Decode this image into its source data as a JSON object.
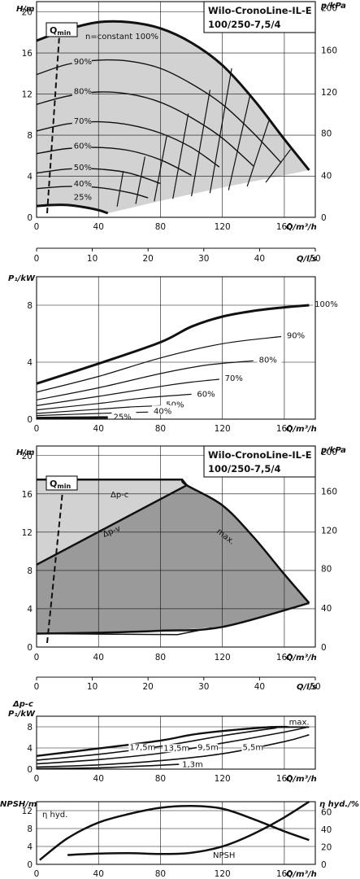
{
  "pump_title": {
    "line1": "Wilo-CronoLine-IL-E",
    "line2": "100/250-7,5/4"
  },
  "labels": {
    "h_axis": "H/m",
    "p_kpa_axis": "p/kPa",
    "q_m3h": "Q/m³/h",
    "q_ls": "Q/l/s",
    "p1_axis": "P₁/kW",
    "dpc_p1_axis_line1": "Δp-c",
    "dpc_p1_axis_line2": "P₁/kW",
    "npsh_axis": "NPSH/m",
    "eta_axis": "η hyd./%",
    "qmin": "Q",
    "qmin_sub": "min",
    "n_constant": "n=constant 100%",
    "dp_c": "Δp-c",
    "dp_v": "Δp-v",
    "max": "max.",
    "max2": "max.",
    "eta_hyd": "η hyd.",
    "npsh": "NPSH"
  },
  "chart_data": [
    {
      "id": "H-Q speed curves",
      "type": "line",
      "x_axis_top": {
        "label": "Q/m³/h",
        "ticks": [
          "0",
          "40",
          "80",
          "120",
          "160"
        ],
        "range": [
          0,
          180
        ]
      },
      "x_axis_bottom": {
        "label": "Q/l/s",
        "ticks": [
          "0",
          "10",
          "20",
          "30",
          "40",
          "50"
        ]
      },
      "y_left": {
        "label": "H/m",
        "ticks": [
          "0",
          "4",
          "8",
          "12",
          "16",
          "20"
        ],
        "range": [
          0,
          21
        ]
      },
      "y_right": {
        "label": "p/kPa",
        "ticks": [
          "0",
          "40",
          "80",
          "120",
          "160",
          "200"
        ]
      },
      "series_labels": [
        "n=constant 100%",
        "90%",
        "80%",
        "70%",
        "60%",
        "50%",
        "40%",
        "25%"
      ],
      "series": [
        {
          "name": "100%",
          "points": [
            [
              0,
              17.2
            ],
            [
              20,
              18.3
            ],
            [
              40,
              19.0
            ],
            [
              60,
              19.0
            ],
            [
              80,
              18.4
            ],
            [
              100,
              17.0
            ],
            [
              120,
              14.8
            ],
            [
              140,
              11.5
            ],
            [
              160,
              7.6
            ],
            [
              176,
              4.6
            ]
          ]
        },
        {
          "name": "90%",
          "points": [
            [
              0,
              13.9
            ],
            [
              20,
              14.9
            ],
            [
              40,
              15.3
            ],
            [
              60,
              15.2
            ],
            [
              80,
              14.5
            ],
            [
              100,
              13.0
            ],
            [
              120,
              11.0
            ],
            [
              140,
              8.2
            ],
            [
              158,
              5.3
            ]
          ]
        },
        {
          "name": "80%",
          "points": [
            [
              0,
              11.0
            ],
            [
              20,
              11.8
            ],
            [
              40,
              12.2
            ],
            [
              60,
              12.0
            ],
            [
              80,
              11.2
            ],
            [
              100,
              9.7
            ],
            [
              120,
              7.7
            ],
            [
              140,
              5.0
            ]
          ]
        },
        {
          "name": "70%",
          "points": [
            [
              0,
              8.4
            ],
            [
              20,
              9.1
            ],
            [
              40,
              9.3
            ],
            [
              60,
              9.0
            ],
            [
              80,
              8.2
            ],
            [
              100,
              6.8
            ],
            [
              118,
              4.9
            ]
          ]
        },
        {
          "name": "60%",
          "points": [
            [
              0,
              6.2
            ],
            [
              20,
              6.7
            ],
            [
              40,
              6.8
            ],
            [
              60,
              6.5
            ],
            [
              80,
              5.6
            ],
            [
              100,
              4.1
            ]
          ]
        },
        {
          "name": "50%",
          "points": [
            [
              0,
              4.3
            ],
            [
              20,
              4.7
            ],
            [
              40,
              4.7
            ],
            [
              60,
              4.3
            ],
            [
              80,
              3.3
            ]
          ]
        },
        {
          "name": "40%",
          "points": [
            [
              0,
              2.8
            ],
            [
              20,
              3.0
            ],
            [
              40,
              2.9
            ],
            [
              60,
              2.4
            ],
            [
              72,
              1.9
            ]
          ]
        },
        {
          "name": "25%",
          "points": [
            [
              0,
              1.1
            ],
            [
              10,
              1.2
            ],
            [
              20,
              1.2
            ],
            [
              30,
              1.0
            ],
            [
              40,
              0.7
            ],
            [
              46,
              0.4
            ]
          ]
        }
      ]
    },
    {
      "id": "P1-Q speed curves",
      "type": "line",
      "x_axis": {
        "label": "Q/m³/h",
        "ticks": [
          "0",
          "40",
          "80",
          "120",
          "160"
        ],
        "range": [
          0,
          180
        ]
      },
      "y_axis": {
        "label": "P₁/kW",
        "ticks": [
          "0",
          "4",
          "8"
        ],
        "range": [
          0,
          10
        ]
      },
      "series_labels": [
        "100%",
        "90%",
        "80%",
        "70%",
        "60%",
        "50%",
        "40%",
        "25%"
      ],
      "series": [
        {
          "name": "100%",
          "points": [
            [
              0,
              2.5
            ],
            [
              40,
              3.9
            ],
            [
              80,
              5.4
            ],
            [
              100,
              6.5
            ],
            [
              120,
              7.2
            ],
            [
              140,
              7.6
            ],
            [
              160,
              7.85
            ],
            [
              176,
              8.0
            ]
          ]
        },
        {
          "name": "90%",
          "points": [
            [
              0,
              1.9
            ],
            [
              40,
              3.0
            ],
            [
              80,
              4.3
            ],
            [
              120,
              5.3
            ],
            [
              158,
              5.8
            ]
          ]
        },
        {
          "name": "80%",
          "points": [
            [
              0,
              1.35
            ],
            [
              40,
              2.2
            ],
            [
              80,
              3.2
            ],
            [
              110,
              3.8
            ],
            [
              140,
              4.1
            ]
          ]
        },
        {
          "name": "70%",
          "points": [
            [
              0,
              0.95
            ],
            [
              40,
              1.6
            ],
            [
              80,
              2.3
            ],
            [
              100,
              2.6
            ],
            [
              118,
              2.8
            ]
          ]
        },
        {
          "name": "60%",
          "points": [
            [
              0,
              0.65
            ],
            [
              40,
              1.1
            ],
            [
              70,
              1.5
            ],
            [
              100,
              1.75
            ]
          ]
        },
        {
          "name": "50%",
          "points": [
            [
              0,
              0.4
            ],
            [
              40,
              0.7
            ],
            [
              60,
              0.85
            ],
            [
              80,
              0.95
            ]
          ]
        },
        {
          "name": "40%",
          "points": [
            [
              0,
              0.25
            ],
            [
              40,
              0.4
            ],
            [
              72,
              0.5
            ]
          ]
        },
        {
          "name": "25%",
          "points": [
            [
              0,
              0.08
            ],
            [
              20,
              0.1
            ],
            [
              46,
              0.12
            ]
          ]
        }
      ]
    },
    {
      "id": "Delta-p control range",
      "type": "area",
      "x_axis_top": {
        "label": "Q/m³/h",
        "ticks": [
          "0",
          "40",
          "80",
          "120",
          "160"
        ],
        "range": [
          0,
          180
        ]
      },
      "x_axis_bottom": {
        "label": "Q/l/s",
        "ticks": [
          "0",
          "10",
          "20",
          "30",
          "40",
          "50"
        ]
      },
      "y_left": {
        "label": "H/m",
        "ticks": [
          "0",
          "4",
          "8",
          "12",
          "16",
          "20"
        ],
        "range": [
          0,
          21
        ]
      },
      "y_right": {
        "label": "p/kPa",
        "ticks": [
          "0",
          "40",
          "80",
          "120",
          "160",
          "200"
        ]
      },
      "series_labels": [
        "Δp-c",
        "Δp-v",
        "max."
      ],
      "series": [
        {
          "name": "Δp-c",
          "points": [
            [
              0,
              17.5
            ],
            [
              94,
              17.5
            ]
          ]
        },
        {
          "name": "Δp-v",
          "points": [
            [
              0,
              8.6
            ],
            [
              97,
              16.9
            ]
          ]
        },
        {
          "name": "max.",
          "points": [
            [
              94,
              17.5
            ],
            [
              97,
              16.9
            ],
            [
              120,
              14.8
            ],
            [
              140,
              11.5
            ],
            [
              160,
              7.6
            ],
            [
              176,
              4.6
            ]
          ]
        },
        {
          "name": "min",
          "points": [
            [
              0,
              1.4
            ],
            [
              40,
              1.5
            ],
            [
              80,
              1.7
            ],
            [
              120,
              2.1
            ],
            [
              176,
              4.6
            ]
          ]
        }
      ]
    },
    {
      "id": "Delta-p-c P1",
      "type": "line",
      "x_axis": {
        "label": "Q/m³/h",
        "ticks": [
          "0",
          "40",
          "80",
          "120",
          "160"
        ],
        "range": [
          0,
          180
        ]
      },
      "y_axis": {
        "label": "Δp-c P₁/kW",
        "ticks": [
          "0",
          "4",
          "8"
        ],
        "range": [
          0,
          10
        ]
      },
      "series_labels": [
        "max.",
        "17,5m",
        "13,5m",
        "9,5m",
        "5,5m",
        "1,3m"
      ],
      "series": [
        {
          "name": "max.",
          "points": [
            [
              0,
              2.5
            ],
            [
              40,
              3.9
            ],
            [
              80,
              5.4
            ],
            [
              100,
              6.5
            ],
            [
              120,
              7.2
            ],
            [
              150,
              7.9
            ],
            [
              176,
              8.0
            ]
          ]
        },
        {
          "name": "17,5m",
          "points": [
            [
              0,
              2.5
            ],
            [
              40,
              3.9
            ],
            [
              80,
              5.4
            ],
            [
              100,
              6.5
            ],
            [
              120,
              7.2
            ],
            [
              150,
              8.0
            ],
            [
              170,
              8.0
            ]
          ]
        },
        {
          "name": "13,5m",
          "points": [
            [
              0,
              1.7
            ],
            [
              40,
              2.8
            ],
            [
              80,
              4.3
            ],
            [
              120,
              6.3
            ],
            [
              155,
              7.8
            ]
          ]
        },
        {
          "name": "9,5m",
          "points": [
            [
              0,
              1.0
            ],
            [
              40,
              1.8
            ],
            [
              80,
              3.0
            ],
            [
              120,
              4.9
            ],
            [
              160,
              7.0
            ],
            [
              176,
              8.0
            ]
          ]
        },
        {
          "name": "5,5m",
          "points": [
            [
              0,
              0.4
            ],
            [
              40,
              0.8
            ],
            [
              80,
              1.6
            ],
            [
              120,
              2.9
            ],
            [
              160,
              5.2
            ],
            [
              176,
              6.5
            ]
          ]
        },
        {
          "name": "1,3m",
          "points": [
            [
              0,
              0.1
            ],
            [
              40,
              0.25
            ],
            [
              70,
              0.6
            ],
            [
              92,
              0.9
            ]
          ]
        }
      ]
    },
    {
      "id": "NPSH and efficiency",
      "type": "line",
      "x_axis": {
        "label": "Q/m³/h",
        "ticks": [
          "0",
          "40",
          "80",
          "120",
          "160"
        ],
        "range": [
          0,
          180
        ]
      },
      "y_left": {
        "label": "NPSH/m",
        "ticks": [
          "0",
          "4",
          "8",
          "12"
        ],
        "range": [
          0,
          14
        ]
      },
      "y_right": {
        "label": "η hyd./%",
        "ticks": [
          "0",
          "20",
          "40",
          "60"
        ],
        "range": [
          0,
          72
        ]
      },
      "series_labels": [
        "η hyd.",
        "NPSH"
      ],
      "series": [
        {
          "name": "η hyd.",
          "axis": "right",
          "points": [
            [
              2,
              5
            ],
            [
              20,
              30
            ],
            [
              40,
              48
            ],
            [
              60,
              58
            ],
            [
              80,
              65
            ],
            [
              100,
              67
            ],
            [
              120,
              64
            ],
            [
              140,
              52
            ],
            [
              160,
              38
            ],
            [
              176,
              28
            ]
          ]
        },
        {
          "name": "NPSH",
          "axis": "left",
          "points": [
            [
              20,
              2.1
            ],
            [
              40,
              2.4
            ],
            [
              60,
              2.5
            ],
            [
              80,
              2.3
            ],
            [
              100,
              2.6
            ],
            [
              120,
              4.0
            ],
            [
              140,
              6.8
            ],
            [
              160,
              10.5
            ],
            [
              176,
              14.0
            ]
          ]
        }
      ]
    }
  ]
}
